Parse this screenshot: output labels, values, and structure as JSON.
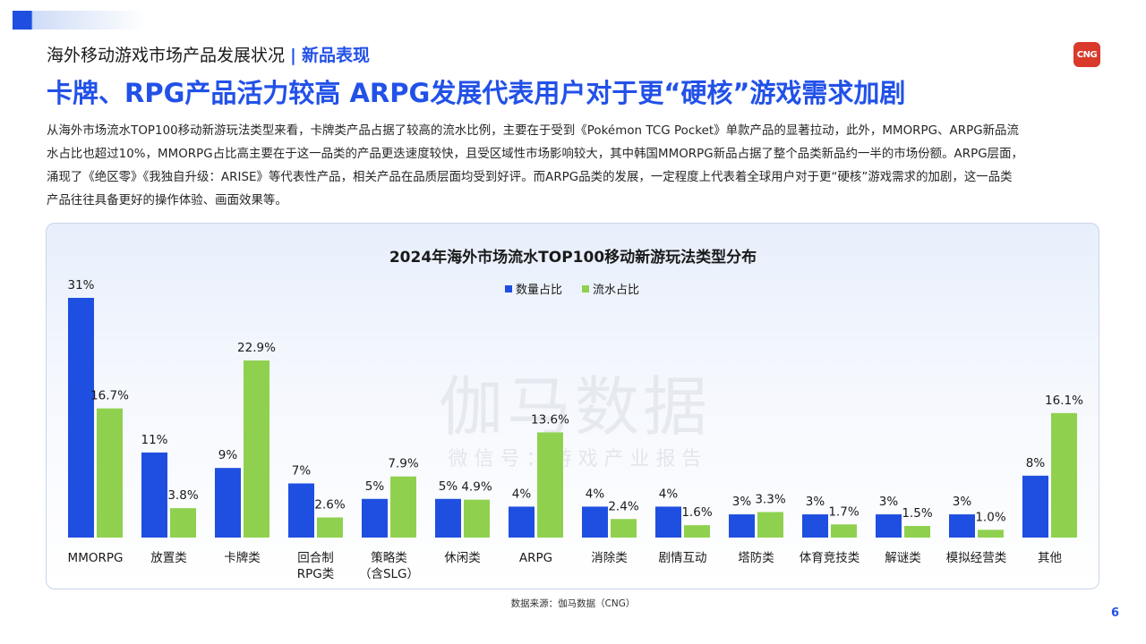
{
  "header": {
    "section": "海外移动游戏市场产品发展状况",
    "separator": "|",
    "highlight": "新品表现",
    "logo_text": "CNG"
  },
  "title": "卡牌、RPG产品活力较高 ARPG发展代表用户对于更“硬核”游戏需求加剧",
  "intro_lines": [
    "从海外市场流水TOP100移动新游玩法类型来看，卡牌类产品占据了较高的流水比例，主要在于受到《Pokémon TCG Pocket》单款产品的显著拉动，此外，MMORPG、ARPG新品流",
    "水占比也超过10%，MMORPG占比高主要在于这一品类的产品更迭速度较快，且受区域性市场影响较大，其中韩国MMORPG新品占据了整个品类新品约一半的市场份额。ARPG层面，",
    "涌现了《绝区零》《我独自升级：ARISE》等代表性产品，相关产品在品质层面均受到好评。而ARPG品类的发展，一定程度上代表着全球用户对于更“硬核”游戏需求的加剧，这一品类",
    "产品往往具备更好的操作体验、画面效果等。"
  ],
  "watermark": {
    "line1": "伽马数据",
    "line2": "微 信 号 ： 游 戏 产 业 报 告"
  },
  "chart_data": {
    "type": "bar",
    "title": "2024年海外市场流水TOP100移动新游玩法类型分布",
    "legend_position": "top-center",
    "categories": [
      "MMORPG",
      "放置类",
      "卡牌类",
      "回合制\nRPG类",
      "策略类\n（含SLG）",
      "休闲类",
      "ARPG",
      "消除类",
      "剧情互动",
      "塔防类",
      "体育竞技类",
      "解谜类",
      "模拟经营类",
      "其他"
    ],
    "series": [
      {
        "name": "数量占比",
        "color": "#1f4fe0",
        "values": [
          31,
          11,
          9,
          7,
          5,
          5,
          4,
          4,
          4,
          3,
          3,
          3,
          3,
          8
        ],
        "labels": [
          "31%",
          "11%",
          "9%",
          "7%",
          "5%",
          "5%",
          "4%",
          "4%",
          "4%",
          "3%",
          "3%",
          "3%",
          "3%",
          "8%"
        ]
      },
      {
        "name": "流水占比",
        "color": "#8fd14f",
        "values": [
          16.7,
          3.8,
          22.9,
          2.6,
          7.9,
          4.9,
          13.6,
          2.4,
          1.6,
          3.3,
          1.7,
          1.5,
          1.0,
          16.1
        ],
        "labels": [
          "16.7%",
          "3.8%",
          "22.9%",
          "2.6%",
          "7.9%",
          "4.9%",
          "13.6%",
          "2.4%",
          "1.6%",
          "3.3%",
          "1.7%",
          "1.5%",
          "1.0%",
          "16.1%"
        ]
      }
    ],
    "ylim": [
      0,
      31
    ],
    "grid": false
  },
  "source": "数据来源：伽马数据（CNG）",
  "page_number": "6"
}
